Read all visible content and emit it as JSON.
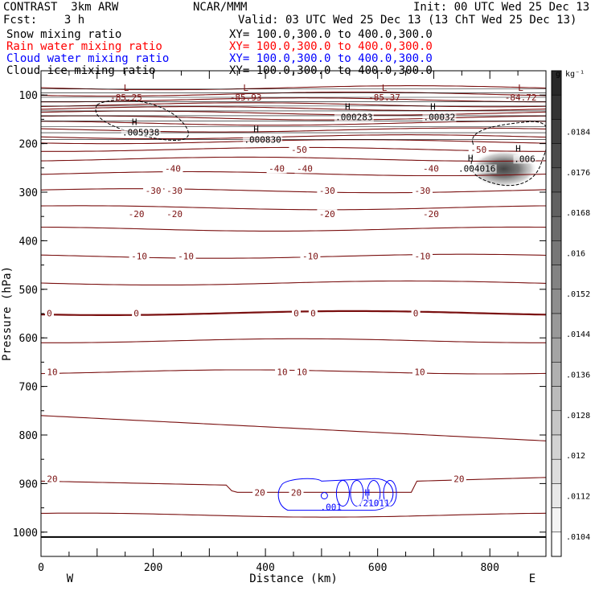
{
  "header": {
    "left1": "CONTRAST  3km ARW",
    "center1": "NCAR/MMM",
    "right1": "Init: 00 UTC Wed 25 Dec 13",
    "left2": "Fcst:    3 h",
    "right2": "Valid: 03 UTC Wed 25 Dec 13 (13 ChT Wed 25 Dec 13)"
  },
  "fields": [
    {
      "name": "Snow mixing ratio",
      "xy": "XY= 100.0,300.0 to 400.0,300.0",
      "color": "#000000"
    },
    {
      "name": "Rain water mixing ratio",
      "xy": "XY= 100.0,300.0 to 400.0,300.0",
      "color": "#ff0000"
    },
    {
      "name": "Cloud water mixing ratio",
      "xy": "XY= 100.0,300.0 to 400.0,300.0",
      "color": "#0000ff"
    },
    {
      "name": "Cloud ice mixing ratio",
      "xy": "XY= 100.0,300.0 to 400.0,300.0",
      "color": "#000000"
    }
  ],
  "chart_data": {
    "type": "contour",
    "xlabel": "Distance (km)",
    "ylabel": "Pressure (hPa)",
    "xlim": [
      0,
      900
    ],
    "ylim": [
      1050,
      50
    ],
    "x_ticks": [
      0,
      200,
      400,
      600,
      800
    ],
    "y_ticks": [
      100,
      200,
      300,
      400,
      500,
      600,
      700,
      800,
      900,
      1000
    ],
    "x_end_labels": {
      "left": "W",
      "right": "E"
    },
    "surface_pressure": 1010,
    "colorbar": {
      "unit": "g kg⁻¹",
      "ticks": [
        ".0184",
        ".0176",
        ".0168",
        ".016",
        ".0152",
        ".0144",
        ".0136",
        ".0128",
        ".012",
        ".0112",
        ".0104"
      ],
      "bands": 20
    },
    "isotherms_p": [
      85,
      98,
      110,
      120,
      128,
      137,
      147,
      158,
      172,
      186,
      196,
      212,
      232,
      262,
      297,
      332,
      376,
      432,
      487,
      549,
      606,
      670,
      765,
      890,
      965
    ],
    "temperature_labels": [
      {
        "x": 235,
        "p": 251,
        "text": "-40"
      },
      {
        "x": 420,
        "p": 251,
        "text": "-40"
      },
      {
        "x": 470,
        "p": 251,
        "text": "-40"
      },
      {
        "x": 695,
        "p": 251,
        "text": "-40"
      },
      {
        "x": 460,
        "p": 212,
        "text": "-50"
      },
      {
        "x": 780,
        "p": 212,
        "text": "-50"
      },
      {
        "x": 200,
        "p": 297,
        "text": "-30"
      },
      {
        "x": 238,
        "p": 297,
        "text": "-30"
      },
      {
        "x": 510,
        "p": 297,
        "text": "-30"
      },
      {
        "x": 680,
        "p": 297,
        "text": "-30"
      },
      {
        "x": 170,
        "p": 345,
        "text": "-20"
      },
      {
        "x": 238,
        "p": 345,
        "text": "-20"
      },
      {
        "x": 510,
        "p": 345,
        "text": "-20"
      },
      {
        "x": 695,
        "p": 345,
        "text": "-20"
      },
      {
        "x": 175,
        "p": 432,
        "text": "-10"
      },
      {
        "x": 258,
        "p": 432,
        "text": "-10"
      },
      {
        "x": 480,
        "p": 432,
        "text": "-10"
      },
      {
        "x": 680,
        "p": 432,
        "text": "-10"
      },
      {
        "x": 15,
        "p": 549,
        "text": "0"
      },
      {
        "x": 170,
        "p": 549,
        "text": "0"
      },
      {
        "x": 455,
        "p": 549,
        "text": "0"
      },
      {
        "x": 485,
        "p": 549,
        "text": "0"
      },
      {
        "x": 668,
        "p": 549,
        "text": "0"
      },
      {
        "x": 20,
        "p": 670,
        "text": "10"
      },
      {
        "x": 430,
        "p": 670,
        "text": "10"
      },
      {
        "x": 465,
        "p": 670,
        "text": "10"
      },
      {
        "x": 675,
        "p": 670,
        "text": "10"
      },
      {
        "x": 20,
        "p": 890,
        "text": "20"
      },
      {
        "x": 390,
        "p": 918,
        "text": "20"
      },
      {
        "x": 455,
        "p": 918,
        "text": "20"
      },
      {
        "x": 745,
        "p": 890,
        "text": "20"
      }
    ],
    "lows": [
      {
        "x": 152,
        "p": 98,
        "text": "-85.25"
      },
      {
        "x": 365,
        "p": 98,
        "text": "-85.93"
      },
      {
        "x": 612,
        "p": 98,
        "text": "-85.37"
      },
      {
        "x": 855,
        "p": 98,
        "text": "-84.72"
      }
    ],
    "highs": [
      {
        "x": 178,
        "p": 168,
        "text": ".005938",
        "color": "#000000"
      },
      {
        "x": 395,
        "p": 183,
        "text": ".000830",
        "color": "#000000"
      },
      {
        "x": 558,
        "p": 137,
        "text": ".000283",
        "color": "#000000"
      },
      {
        "x": 710,
        "p": 137,
        "text": ".00032",
        "color": "#000000"
      },
      {
        "x": 777,
        "p": 243,
        "text": ".004016",
        "color": "#000000"
      },
      {
        "x": 862,
        "p": 223,
        "text": ".006",
        "color": "#000000"
      },
      {
        "x": 593,
        "p": 932,
        "text": ".21011",
        "color": "#0000ff"
      }
    ],
    "other_labels": [
      {
        "x": 517,
        "p": 955,
        "text": ".001",
        "color": "#0000ff"
      }
    ],
    "shaded_region": {
      "x_center": 825,
      "p_center": 252,
      "x_halfwidth": 60,
      "p_halfwidth": 38,
      "max": 0.0184
    }
  }
}
